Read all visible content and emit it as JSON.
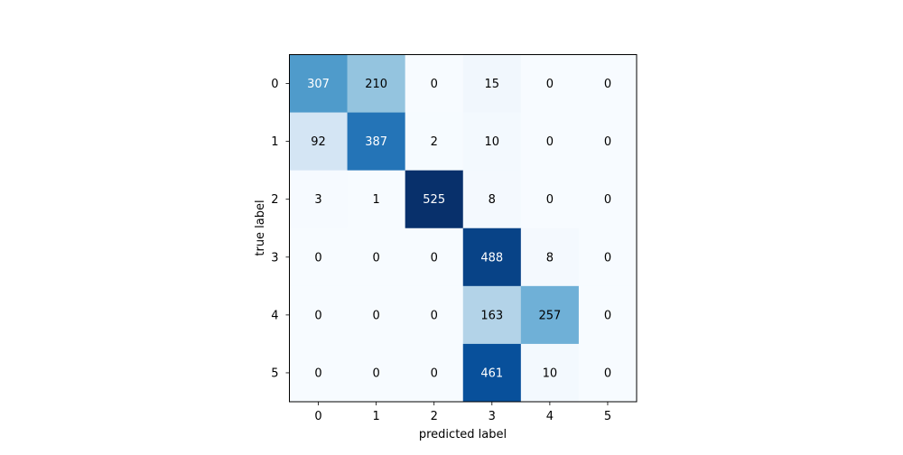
{
  "chart_data": {
    "type": "heatmap",
    "title": "",
    "xlabel": "predicted label",
    "ylabel": "true label",
    "x_categories": [
      "0",
      "1",
      "2",
      "3",
      "4",
      "5"
    ],
    "y_categories": [
      "0",
      "1",
      "2",
      "3",
      "4",
      "5"
    ],
    "values": [
      [
        307,
        210,
        0,
        15,
        0,
        0
      ],
      [
        92,
        387,
        2,
        10,
        0,
        0
      ],
      [
        3,
        1,
        525,
        8,
        0,
        0
      ],
      [
        0,
        0,
        0,
        488,
        8,
        0
      ],
      [
        0,
        0,
        0,
        163,
        257,
        0
      ],
      [
        0,
        0,
        0,
        461,
        10,
        0
      ]
    ],
    "colormap": "Blues",
    "value_range": [
      0,
      525
    ],
    "grid": false,
    "colorbar": false
  }
}
